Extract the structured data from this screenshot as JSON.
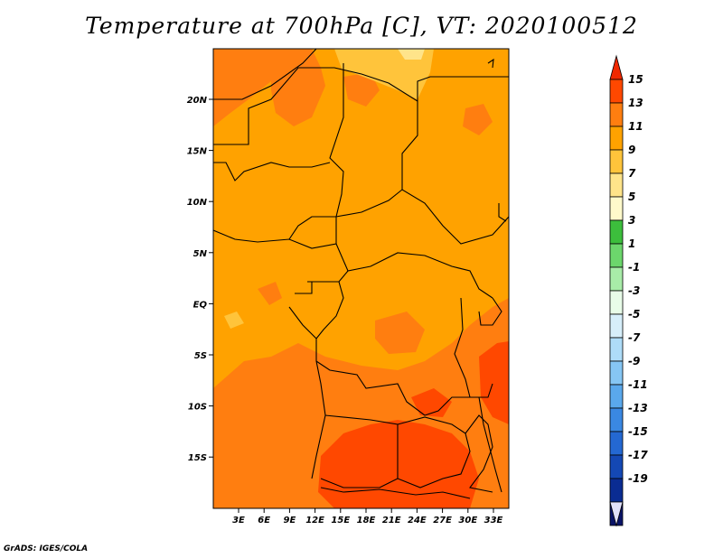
{
  "title": "Temperature at 700hPa [C], VT: 2020100512",
  "footer": "GrADS: IGES/COLA",
  "map": {
    "lat_range": [
      -20,
      25
    ],
    "lon_range": [
      0,
      35
    ],
    "lat_ticks": [
      "20N",
      "15N",
      "10N",
      "5N",
      "EQ",
      "5S",
      "10S",
      "15S"
    ],
    "lon_ticks": [
      "3E",
      "6E",
      "9E",
      "12E",
      "15E",
      "18E",
      "21E",
      "24E",
      "27E",
      "30E",
      "33E"
    ],
    "dominant_bin": "9 to 11 C",
    "colors": {
      "bg": "#FFA200",
      "band_7_9": "#FFC43B",
      "band_5_7": "#FFE48A",
      "band_11_13": "#FF7E10",
      "band_13_15": "#FF4800"
    }
  },
  "colorbar": {
    "labels": [
      "15",
      "13",
      "11",
      "9",
      "7",
      "5",
      "3",
      "1",
      "-1",
      "-3",
      "-5",
      "-7",
      "-9",
      "-11",
      "-13",
      "-15",
      "-17",
      "-19"
    ],
    "colors": [
      "#F02800",
      "#FF4800",
      "#FF7E10",
      "#FFA200",
      "#FFC43B",
      "#FFE48A",
      "#FFFACB",
      "#3CBE3C",
      "#6CD66C",
      "#A8ECA8",
      "#E8FCE8",
      "#D6EEFA",
      "#AEDCF8",
      "#86C6F4",
      "#5AA8EC",
      "#3A88E2",
      "#2468D2",
      "#1448B4",
      "#0A2C92",
      "#0A1468",
      "#E1E1FA"
    ]
  }
}
